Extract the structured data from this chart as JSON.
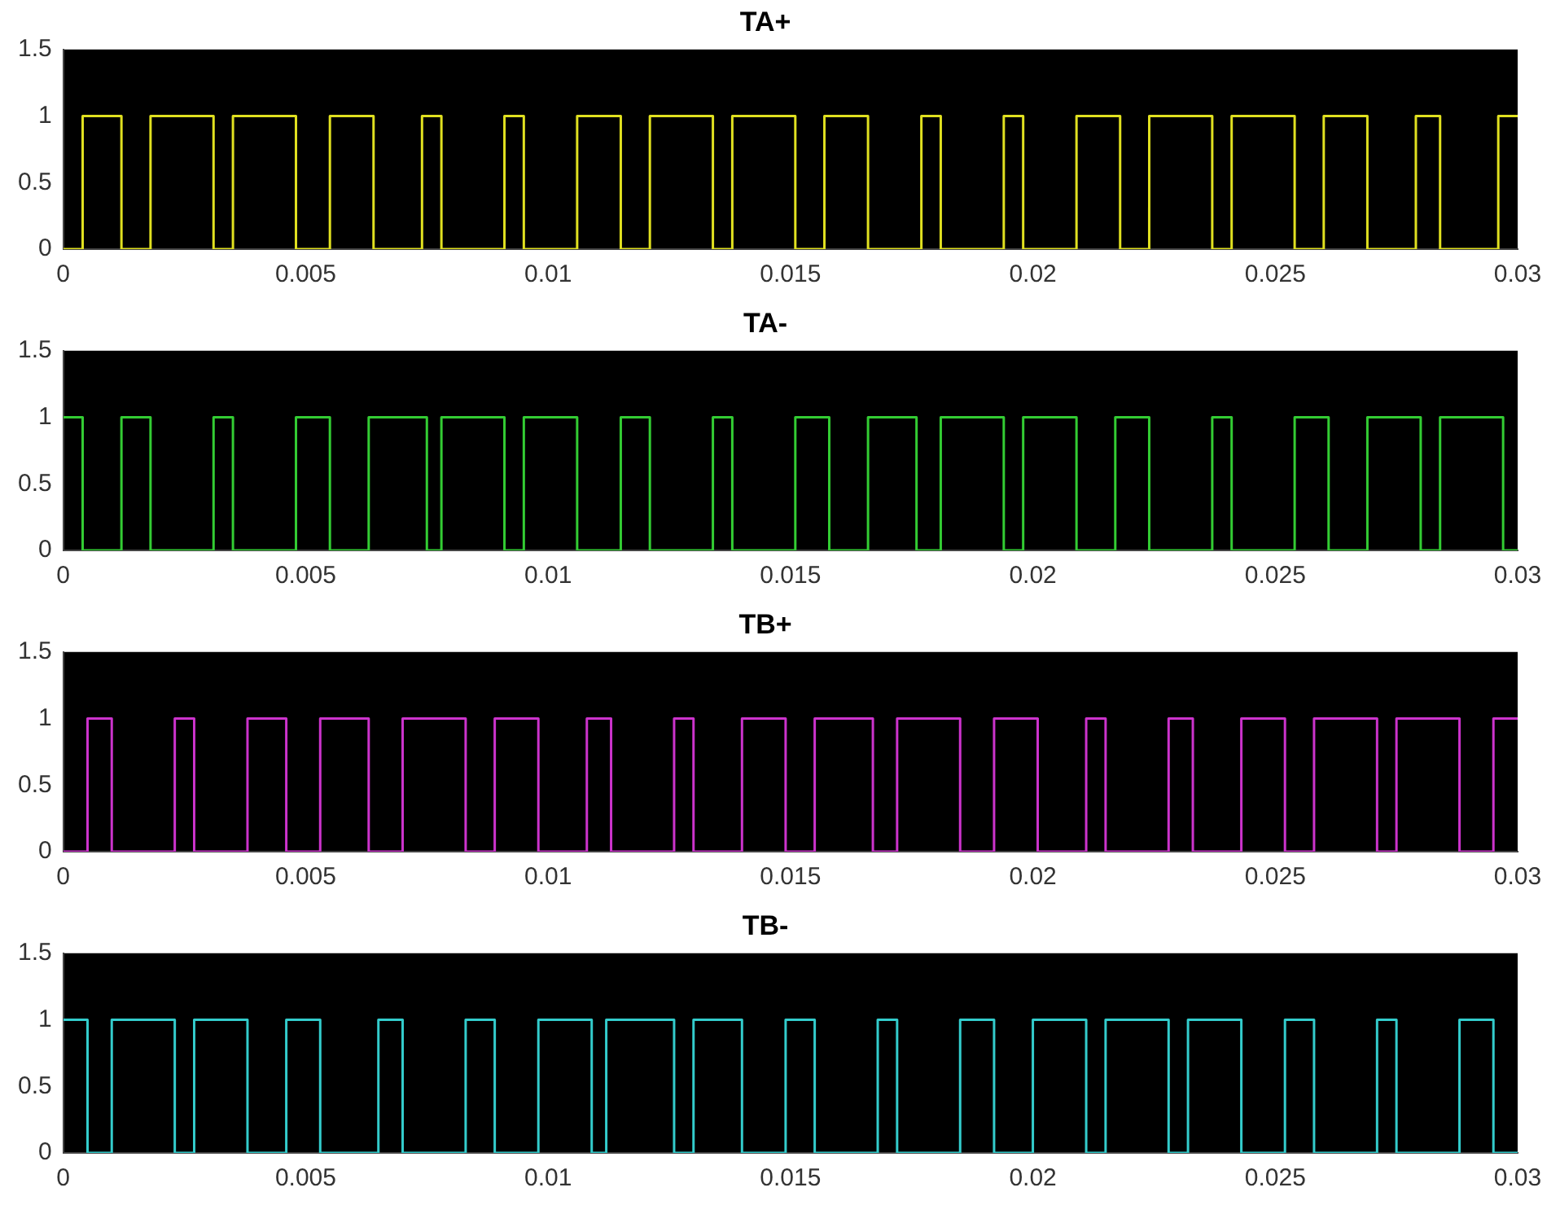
{
  "chart_data": [
    {
      "type": "step",
      "title": "TA+",
      "xlim": [
        0,
        0.03
      ],
      "xticks": [
        0,
        0.005,
        0.01,
        0.015,
        0.02,
        0.025,
        0.03
      ],
      "ylim": [
        0,
        1.5
      ],
      "yticks": [
        0,
        0.5,
        1,
        1.5
      ],
      "marker": "none",
      "series": [
        {
          "color": "#e0e020",
          "x": [
            0,
            0.0004,
            0.0012,
            0.0018,
            0.0031,
            0.0035,
            0.0048,
            0.0055,
            0.0064,
            0.0074,
            0.0078,
            0.0091,
            0.0095,
            0.0106,
            0.0115,
            0.0121,
            0.0134,
            0.0138,
            0.0151,
            0.0157,
            0.0166,
            0.0177,
            0.0181,
            0.0194,
            0.0198,
            0.0209,
            0.0218,
            0.0224,
            0.0237,
            0.0241,
            0.0254,
            0.026,
            0.0269,
            0.0279,
            0.0284,
            0.0296,
            0.03
          ],
          "values": [
            0,
            1,
            0,
            1,
            0,
            1,
            0,
            1,
            0,
            1,
            0,
            1,
            0,
            1,
            0,
            1,
            0,
            1,
            0,
            1,
            0,
            1,
            0,
            1,
            0,
            1,
            0,
            1,
            0,
            1,
            0,
            1,
            0,
            1,
            0,
            1,
            1
          ]
        }
      ]
    },
    {
      "type": "step",
      "title": "TA-",
      "xlim": [
        0,
        0.03
      ],
      "xticks": [
        0,
        0.005,
        0.01,
        0.015,
        0.02,
        0.025,
        0.03
      ],
      "ylim": [
        0,
        1.5
      ],
      "yticks": [
        0,
        0.5,
        1,
        1.5
      ],
      "marker": "none",
      "series": [
        {
          "color": "#33cc33",
          "x": [
            0,
            0.0004,
            0.0012,
            0.0018,
            0.0031,
            0.0035,
            0.0048,
            0.0055,
            0.0063,
            0.0075,
            0.0078,
            0.0091,
            0.0095,
            0.0106,
            0.0115,
            0.0121,
            0.0134,
            0.0138,
            0.0151,
            0.0158,
            0.0166,
            0.0176,
            0.0181,
            0.0194,
            0.0198,
            0.0209,
            0.0217,
            0.0224,
            0.0237,
            0.0241,
            0.0254,
            0.0261,
            0.0269,
            0.028,
            0.0284,
            0.0297,
            0.03
          ],
          "values": [
            1,
            0,
            1,
            0,
            1,
            0,
            1,
            0,
            1,
            0,
            1,
            0,
            1,
            0,
            1,
            0,
            1,
            0,
            1,
            0,
            1,
            0,
            1,
            0,
            1,
            0,
            1,
            0,
            1,
            0,
            1,
            0,
            1,
            0,
            1,
            0,
            0
          ]
        }
      ]
    },
    {
      "type": "step",
      "title": "TB+",
      "xlim": [
        0,
        0.03
      ],
      "xticks": [
        0,
        0.005,
        0.01,
        0.015,
        0.02,
        0.025,
        0.03
      ],
      "ylim": [
        0,
        1.5
      ],
      "yticks": [
        0,
        0.5,
        1,
        1.5
      ],
      "marker": "none",
      "series": [
        {
          "color": "#cc33cc",
          "x": [
            0,
            0.0005,
            0.001,
            0.0023,
            0.0027,
            0.0038,
            0.0046,
            0.0053,
            0.0063,
            0.007,
            0.0083,
            0.0089,
            0.0098,
            0.0108,
            0.0113,
            0.0126,
            0.013,
            0.014,
            0.0149,
            0.0155,
            0.0167,
            0.0172,
            0.0185,
            0.0192,
            0.0201,
            0.0211,
            0.0215,
            0.0228,
            0.0233,
            0.0243,
            0.0252,
            0.0258,
            0.0271,
            0.0275,
            0.0288,
            0.0295,
            0.03
          ],
          "values": [
            0,
            1,
            0,
            1,
            0,
            1,
            0,
            1,
            0,
            1,
            0,
            1,
            0,
            1,
            0,
            1,
            0,
            1,
            0,
            1,
            0,
            1,
            0,
            1,
            0,
            1,
            0,
            1,
            0,
            1,
            0,
            1,
            0,
            1,
            0,
            1,
            1
          ]
        }
      ]
    },
    {
      "type": "step",
      "title": "TB-",
      "xlim": [
        0,
        0.03
      ],
      "xticks": [
        0,
        0.005,
        0.01,
        0.015,
        0.02,
        0.025,
        0.03
      ],
      "ylim": [
        0,
        1.5
      ],
      "yticks": [
        0,
        0.5,
        1,
        1.5
      ],
      "marker": "none",
      "series": [
        {
          "color": "#33cccc",
          "x": [
            0,
            0.0005,
            0.001,
            0.0023,
            0.0027,
            0.0038,
            0.0046,
            0.0053,
            0.0065,
            0.007,
            0.0083,
            0.0089,
            0.0098,
            0.0109,
            0.0112,
            0.0126,
            0.013,
            0.014,
            0.0149,
            0.0155,
            0.0168,
            0.0172,
            0.0185,
            0.0192,
            0.02,
            0.0211,
            0.0215,
            0.0228,
            0.0232,
            0.0243,
            0.0252,
            0.0258,
            0.0271,
            0.0275,
            0.0288,
            0.0295,
            0.03
          ],
          "values": [
            1,
            0,
            1,
            0,
            1,
            0,
            1,
            0,
            1,
            0,
            1,
            0,
            1,
            0,
            1,
            0,
            1,
            0,
            1,
            0,
            1,
            0,
            1,
            0,
            1,
            0,
            1,
            0,
            1,
            0,
            1,
            0,
            1,
            0,
            1,
            0,
            0
          ]
        }
      ]
    }
  ]
}
